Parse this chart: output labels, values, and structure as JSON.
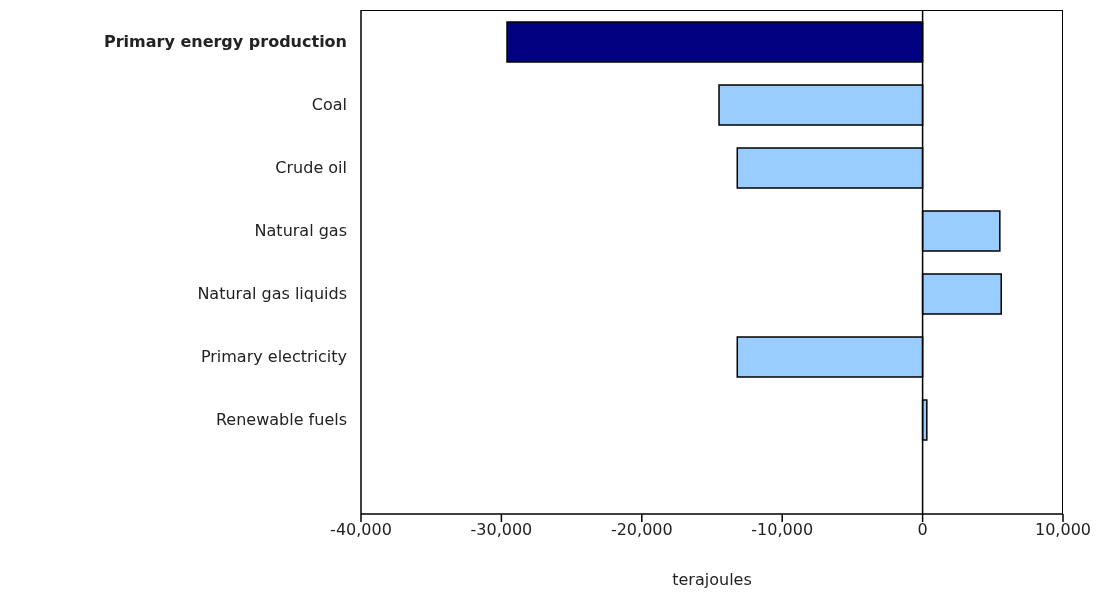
{
  "chart_data": {
    "type": "bar",
    "orientation": "horizontal",
    "xlabel": "terajoules",
    "categories": [
      "Primary energy production",
      "Coal",
      "Crude oil",
      "Natural gas",
      "Natural gas liquids",
      "Primary electricity",
      "Renewable fuels"
    ],
    "values": [
      -29600,
      -14500,
      -13200,
      5500,
      5600,
      -13200,
      300
    ],
    "colors": [
      "#000080",
      "#99ccff",
      "#99ccff",
      "#99ccff",
      "#99ccff",
      "#99ccff",
      "#99ccff"
    ],
    "xlim": [
      -40000,
      10000
    ],
    "xticks": [
      {
        "value": -40000,
        "label": "-40,000"
      },
      {
        "value": -30000,
        "label": "-30,000"
      },
      {
        "value": -20000,
        "label": "-20,000"
      },
      {
        "value": -10000,
        "label": "-10,000"
      },
      0,
      {
        "value": 10000,
        "label": "10,000"
      }
    ],
    "ref_lines": [
      {
        "axis": "x",
        "value": 0
      }
    ],
    "grid": false
  }
}
